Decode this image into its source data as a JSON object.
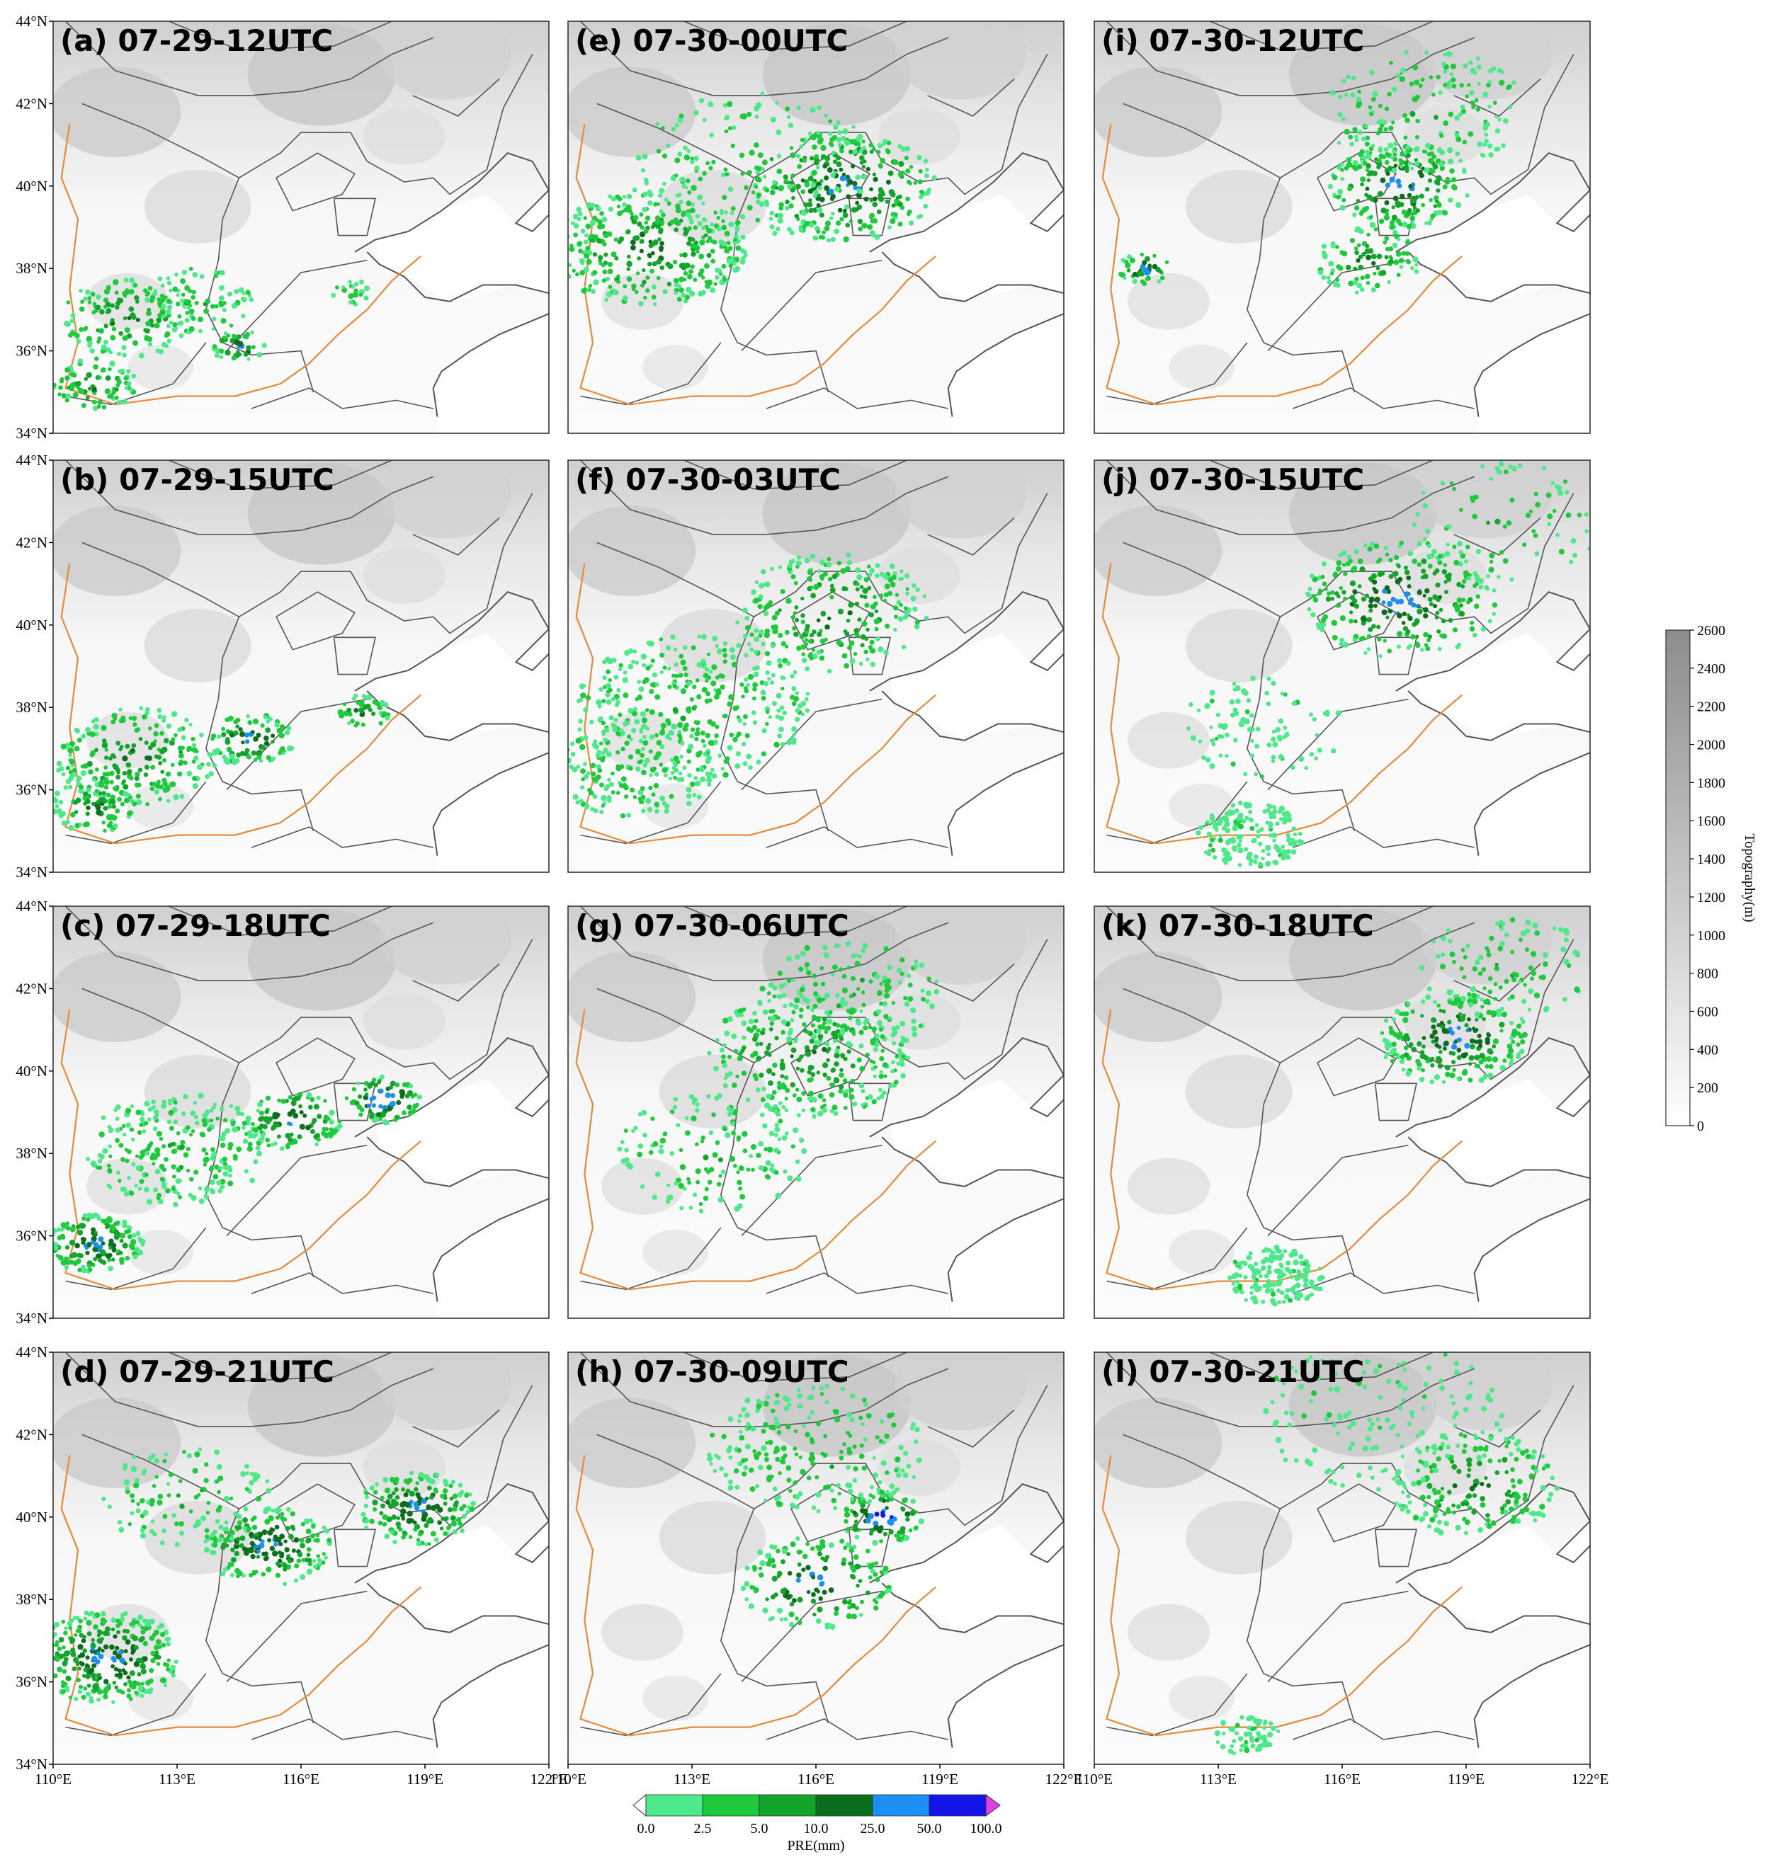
{
  "panels": [
    {
      "id": "a",
      "title": "(a) 07-29-12UTC"
    },
    {
      "id": "e",
      "title": "(e) 07-30-00UTC"
    },
    {
      "id": "i",
      "title": "(i) 07-30-12UTC"
    },
    {
      "id": "b",
      "title": "(b) 07-29-15UTC"
    },
    {
      "id": "f",
      "title": "(f) 07-30-03UTC"
    },
    {
      "id": "j",
      "title": "(j) 07-30-15UTC"
    },
    {
      "id": "c",
      "title": "(c) 07-29-18UTC"
    },
    {
      "id": "g",
      "title": "(g) 07-30-06UTC"
    },
    {
      "id": "k",
      "title": "(k) 07-30-18UTC"
    },
    {
      "id": "d",
      "title": "(d) 07-29-21UTC"
    },
    {
      "id": "h",
      "title": "(h) 07-30-09UTC"
    },
    {
      "id": "l",
      "title": "(l) 07-30-21UTC"
    }
  ],
  "axes": {
    "lat_ticks": [
      "44°N",
      "42°N",
      "40°N",
      "38°N",
      "36°N",
      "34°N"
    ],
    "lon_ticks": [
      "110°E",
      "113°E",
      "116°E",
      "119°E",
      "122°E"
    ],
    "lon_range": [
      110,
      122
    ],
    "lat_range": [
      34,
      44
    ]
  },
  "topo_colorbar": {
    "label": "Topography(m)",
    "ticks": [
      "2600",
      "2400",
      "2200",
      "2000",
      "1800",
      "1600",
      "1400",
      "1200",
      "1000",
      "800",
      "600",
      "400",
      "200",
      "0"
    ]
  },
  "pre_colorbar": {
    "label": "PRE(mm)",
    "ticks": [
      "0.0",
      "2.5",
      "5.0",
      "10.0",
      "25.0",
      "50.0",
      "100.0"
    ],
    "colors": [
      "#4de88a",
      "#1ec93c",
      "#13a42c",
      "#0b6e1c",
      "#1c8ff5",
      "#1414e6",
      "#e040e0"
    ]
  },
  "colors": {
    "border": "#555555",
    "river": "#e8893a",
    "topo_high": "#9a9a9a"
  }
}
